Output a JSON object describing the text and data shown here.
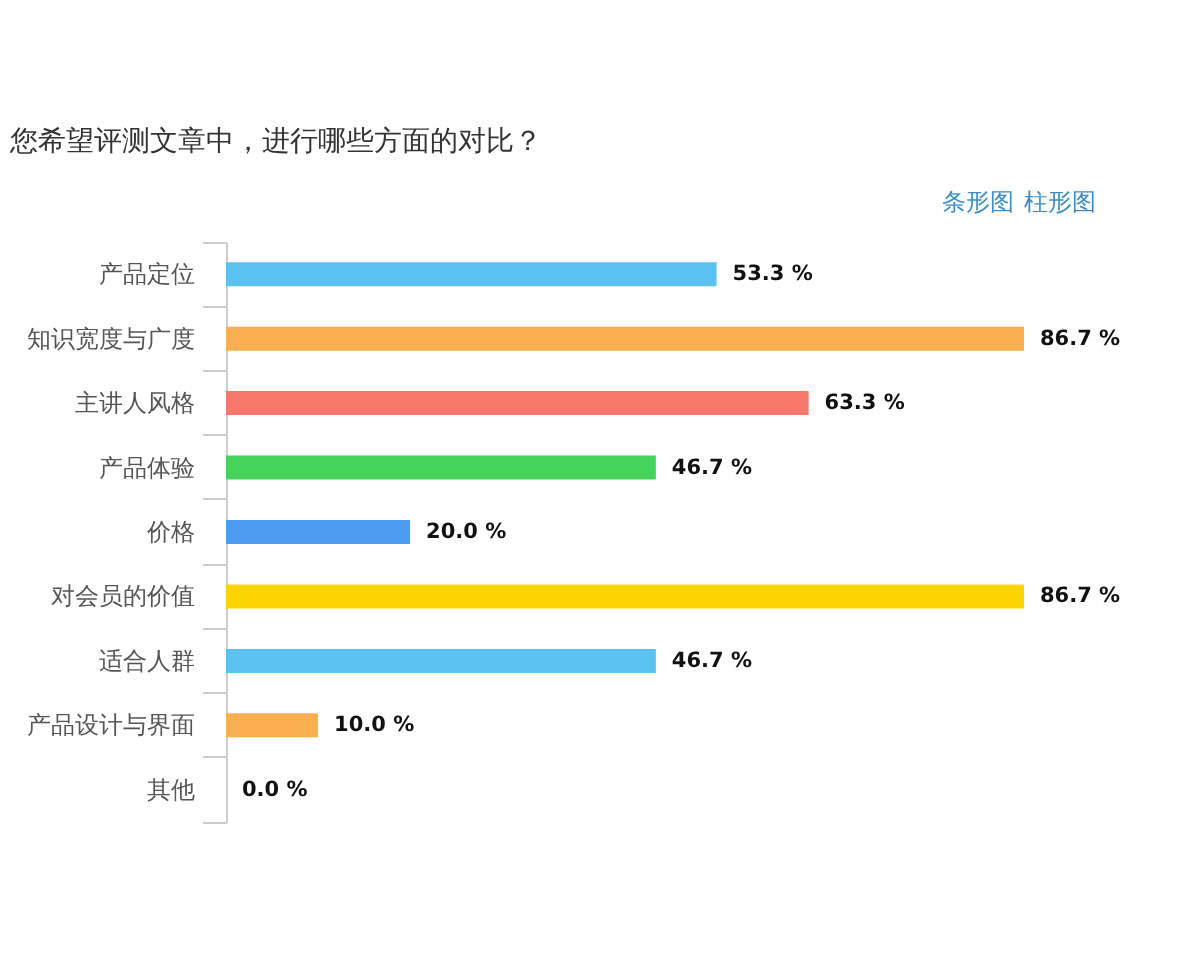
{
  "chart_data": {
    "type": "bar",
    "orientation": "horizontal",
    "title": "您希望评测文章中，进行哪些方面的对比？",
    "categories": [
      "产品定位",
      "知识宽度与广度",
      "主讲人风格",
      "产品体验",
      "价格",
      "对会员的价值",
      "适合人群",
      "产品设计与界面",
      "其他"
    ],
    "values": [
      53.3,
      86.7,
      63.3,
      46.7,
      20.0,
      86.7,
      46.7,
      10.0,
      0.0
    ],
    "colors": [
      "#5bc1f1",
      "#f9ae4f",
      "#f7776a",
      "#45d35b",
      "#4b9cef",
      "#fbd400",
      "#5bc1f1",
      "#f9ae4f",
      "#5bc1f1"
    ],
    "value_labels": [
      "53.3 %",
      "86.7 %",
      "63.3 %",
      "46.7 %",
      "20.0 %",
      "86.7 %",
      "46.7 %",
      "10.0 %",
      "0.0 %"
    ],
    "tick_labels": "y",
    "annotations": [
      "条形图",
      "柱形图"
    ],
    "legend": false
  }
}
